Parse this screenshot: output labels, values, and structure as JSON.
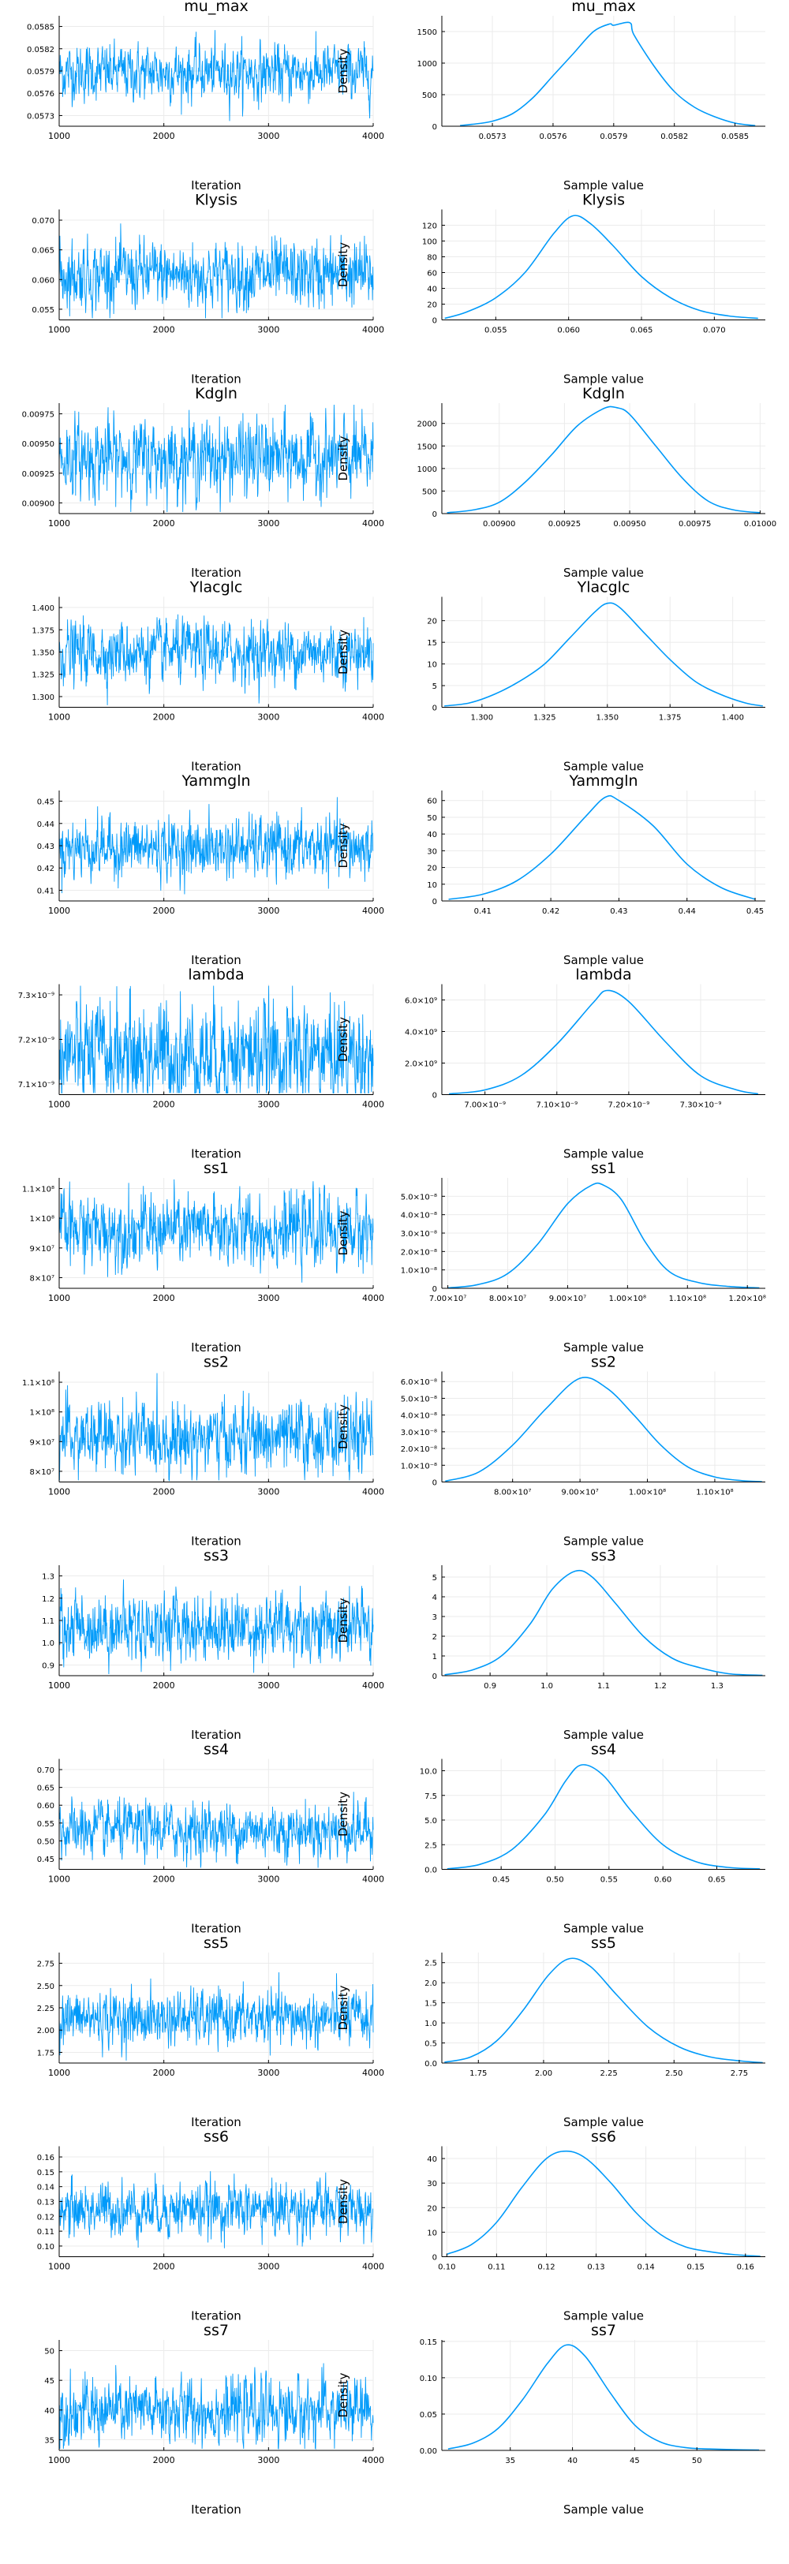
{
  "colors": {
    "trace": "#009AFA",
    "density": "#009AFA",
    "grid": "#EBEBEB",
    "axis": "#000000"
  },
  "common": {
    "trace_xlabel": "Iteration",
    "density_xlabel": "Sample value",
    "density_ylabel": "Density"
  },
  "chart_data": [
    {
      "name": "mu_max",
      "trace": {
        "type": "line",
        "title": "mu_max",
        "xlabel": "Iteration",
        "xlim": [
          1000,
          4000
        ],
        "xticks": [
          "1000",
          "2000",
          "3000",
          "4000"
        ],
        "yticks": [
          "0.0573",
          "0.0576",
          "0.0579",
          "0.0582",
          "0.0585"
        ],
        "mean": 0.05788,
        "spread": 0.000185
      },
      "density": {
        "type": "line",
        "title": "mu_max",
        "xlabel": "Sample value",
        "ylabel": "Density",
        "x": [
          0.05714,
          0.0572,
          0.0573,
          0.0574,
          0.0575,
          0.0576,
          0.0577,
          0.0578,
          0.05788,
          0.0579,
          0.05798,
          0.058,
          0.0581,
          0.0582,
          0.0583,
          0.0584,
          0.0585,
          0.0586
        ],
        "y": [
          10,
          30,
          80,
          200,
          450,
          800,
          1150,
          1500,
          1620,
          1600,
          1640,
          1450,
          950,
          550,
          300,
          150,
          50,
          10
        ],
        "xlim": [
          0.05705,
          0.05865
        ],
        "ylim": [
          0,
          1750
        ],
        "xticks": [
          "0.0573",
          "0.0576",
          "0.0579",
          "0.0582",
          "0.0585"
        ],
        "yticks": [
          "0",
          "500",
          "1000",
          "1500"
        ]
      }
    },
    {
      "name": "Klysis",
      "trace": {
        "type": "line",
        "title": "Klysis",
        "xlabel": "Iteration",
        "xlim": [
          1000,
          4000
        ],
        "xticks": [
          "1000",
          "2000",
          "3000",
          "4000"
        ],
        "yticks": [
          "0.055",
          "0.060",
          "0.065",
          "0.070"
        ],
        "mean": 0.0608,
        "spread": 0.0028
      },
      "density": {
        "type": "line",
        "title": "Klysis",
        "xlabel": "Sample value",
        "ylabel": "Density",
        "x": [
          0.0515,
          0.053,
          0.055,
          0.057,
          0.059,
          0.0603,
          0.0615,
          0.063,
          0.065,
          0.067,
          0.069,
          0.071,
          0.073
        ],
        "y": [
          2,
          10,
          28,
          60,
          110,
          132,
          122,
          95,
          55,
          28,
          12,
          5,
          2
        ],
        "xlim": [
          0.0513,
          0.0735
        ],
        "ylim": [
          0,
          140
        ],
        "xticks": [
          "0.055",
          "0.060",
          "0.065",
          "0.070"
        ],
        "yticks": [
          "0",
          "20",
          "40",
          "60",
          "80",
          "100",
          "120"
        ]
      }
    },
    {
      "name": "Kdgln",
      "trace": {
        "type": "line",
        "title": "Kdgln",
        "xlabel": "Iteration",
        "xlim": [
          1000,
          4000
        ],
        "xticks": [
          "1000",
          "2000",
          "3000",
          "4000"
        ],
        "yticks": [
          "0.00900",
          "0.00925",
          "0.00950",
          "0.00975"
        ],
        "mean": 0.00938,
        "spread": 0.00016
      },
      "density": {
        "type": "line",
        "title": "Kdgln",
        "xlabel": "Sample value",
        "ylabel": "Density",
        "x": [
          0.0088,
          0.0089,
          0.009,
          0.0091,
          0.0092,
          0.0093,
          0.0094,
          0.00945,
          0.0095,
          0.0096,
          0.0097,
          0.0098,
          0.0099,
          0.01
        ],
        "y": [
          20,
          80,
          250,
          700,
          1300,
          1950,
          2330,
          2350,
          2200,
          1500,
          800,
          280,
          80,
          20
        ],
        "xlim": [
          0.00878,
          0.01002
        ],
        "ylim": [
          0,
          2450
        ],
        "xticks": [
          "0.00900",
          "0.00925",
          "0.00950",
          "0.00975",
          "0.01000"
        ],
        "yticks": [
          "0",
          "500",
          "1000",
          "1500",
          "2000"
        ]
      }
    },
    {
      "name": "Ylacglc",
      "trace": {
        "type": "line",
        "title": "Ylacglc",
        "xlabel": "Iteration",
        "xlim": [
          1000,
          4000
        ],
        "xticks": [
          "1000",
          "2000",
          "3000",
          "4000"
        ],
        "yticks": [
          "1.300",
          "1.325",
          "1.350",
          "1.375",
          "1.400"
        ],
        "mean": 1.35,
        "spread": 0.017
      },
      "density": {
        "type": "line",
        "title": "Ylacglc",
        "xlabel": "Sample value",
        "ylabel": "Density",
        "x": [
          1.285,
          1.295,
          1.305,
          1.315,
          1.325,
          1.335,
          1.345,
          1.35,
          1.355,
          1.365,
          1.375,
          1.385,
          1.395,
          1.405,
          1.412
        ],
        "y": [
          0.3,
          1,
          3,
          6,
          10,
          16,
          22,
          24,
          23,
          17,
          11,
          6,
          3,
          1,
          0.3
        ],
        "xlim": [
          1.284,
          1.413
        ],
        "ylim": [
          0,
          25.5
        ],
        "xticks": [
          "1.300",
          "1.325",
          "1.350",
          "1.375",
          "1.400"
        ],
        "yticks": [
          "0",
          "5",
          "10",
          "15",
          "20"
        ]
      }
    },
    {
      "name": "Yammgln",
      "trace": {
        "type": "line",
        "title": "Yammgln",
        "xlabel": "Iteration",
        "xlim": [
          1000,
          4000
        ],
        "xticks": [
          "1000",
          "2000",
          "3000",
          "4000"
        ],
        "yticks": [
          "0.41",
          "0.42",
          "0.43",
          "0.44",
          "0.45"
        ],
        "mean": 0.429,
        "spread": 0.0066
      },
      "density": {
        "type": "line",
        "title": "Yammgln",
        "xlabel": "Sample value",
        "ylabel": "Density",
        "x": [
          0.405,
          0.41,
          0.415,
          0.42,
          0.425,
          0.428,
          0.43,
          0.435,
          0.44,
          0.445,
          0.45
        ],
        "y": [
          1,
          4,
          12,
          28,
          50,
          62,
          60,
          45,
          22,
          8,
          1
        ],
        "xlim": [
          0.404,
          0.4515
        ],
        "ylim": [
          0,
          66
        ],
        "xticks": [
          "0.41",
          "0.42",
          "0.43",
          "0.44",
          "0.45"
        ],
        "yticks": [
          "0",
          "10",
          "20",
          "30",
          "40",
          "50",
          "60"
        ]
      }
    },
    {
      "name": "lambda",
      "trace": {
        "type": "line",
        "title": "lambda",
        "xlabel": "Iteration",
        "xlim": [
          1000,
          4000
        ],
        "xticks": [
          "1000",
          "2000",
          "3000",
          "4000"
        ],
        "yticks": [
          "7.1×10⁻⁹",
          "7.2×10⁻⁹",
          "7.3×10⁻⁹"
        ],
        "mean": 7.165e-09,
        "spread": 6e-11
      },
      "density": {
        "type": "line",
        "title": "lambda",
        "xlabel": "Sample value",
        "ylabel": "Density",
        "x": [
          6.95e-09,
          7e-09,
          7.05e-09,
          7.1e-09,
          7.15e-09,
          7.17e-09,
          7.2e-09,
          7.25e-09,
          7.3e-09,
          7.35e-09,
          7.38e-09
        ],
        "y": [
          50000000.0,
          300000000.0,
          1200000000.0,
          3200000000.0,
          5800000000.0,
          6600000000.0,
          5900000000.0,
          3400000000.0,
          1200000000.0,
          300000000.0,
          50000000.0
        ],
        "xlim": [
          6.94e-09,
          7.39e-09
        ],
        "ylim": [
          0,
          7000000000.0
        ],
        "xticks": [
          "7.00×10⁻⁹",
          "7.10×10⁻⁹",
          "7.20×10⁻⁹",
          "7.30×10⁻⁹"
        ],
        "yticks": [
          "0",
          "2.0×10⁹",
          "4.0×10⁹",
          "6.0×10⁹"
        ]
      }
    },
    {
      "name": "ss1",
      "trace": {
        "type": "line",
        "title": "ss1",
        "xlabel": "Iteration",
        "xlim": [
          1000,
          4000
        ],
        "xticks": [
          "1000",
          "2000",
          "3000",
          "4000"
        ],
        "yticks": [
          "8×10⁷",
          "9×10⁷",
          "1×10⁸",
          "1.1×10⁸"
        ],
        "mean": 96000000.0,
        "spread": 6000000.0
      },
      "density": {
        "type": "line",
        "title": "ss1",
        "xlabel": "Sample value",
        "ylabel": "Density",
        "x": [
          70000000.0,
          75000000.0,
          80000000.0,
          85000000.0,
          90000000.0,
          94000000.0,
          96000000.0,
          99000000.0,
          103000000.0,
          107000000.0,
          112000000.0,
          117000000.0,
          122000000.0
        ],
        "y": [
          2e-10,
          2e-09,
          8e-09,
          2.4e-08,
          4.6e-08,
          5.6e-08,
          5.6e-08,
          4.8e-08,
          2.5e-08,
          9e-09,
          3e-09,
          1e-09,
          2e-10
        ],
        "xlim": [
          69000000.0,
          123000000.0
        ],
        "ylim": [
          0,
          6e-08
        ],
        "xticks": [
          "7.00×10⁷",
          "8.00×10⁷",
          "9.00×10⁷",
          "1.00×10⁸",
          "1.10×10⁸",
          "1.20×10⁸"
        ],
        "yticks": [
          "0",
          "1.0×10⁻⁸",
          "2.0×10⁻⁸",
          "3.0×10⁻⁸",
          "4.0×10⁻⁸",
          "5.0×10⁻⁸"
        ]
      }
    },
    {
      "name": "ss2",
      "trace": {
        "type": "line",
        "title": "ss2",
        "xlabel": "Iteration",
        "xlim": [
          1000,
          4000
        ],
        "xticks": [
          "1000",
          "2000",
          "3000",
          "4000"
        ],
        "yticks": [
          "8×10⁷",
          "9×10⁷",
          "1×10⁸",
          "1.1×10⁸"
        ],
        "mean": 91000000.0,
        "spread": 6000000.0
      },
      "density": {
        "type": "line",
        "title": "ss2",
        "xlabel": "Sample value",
        "ylabel": "Density",
        "x": [
          70000000.0,
          75000000.0,
          80000000.0,
          85000000.0,
          90000000.0,
          94000000.0,
          98000000.0,
          102000000.0,
          106000000.0,
          110000000.0,
          114000000.0,
          117000000.0
        ],
        "y": [
          5e-10,
          6e-09,
          2.2e-08,
          4.4e-08,
          6.2e-08,
          5.6e-08,
          4e-08,
          2.2e-08,
          9e-09,
          3e-09,
          8e-10,
          2e-10
        ],
        "xlim": [
          69500000.0,
          117500000.0
        ],
        "ylim": [
          0,
          6.6e-08
        ],
        "xticks": [
          "8.00×10⁷",
          "9.00×10⁷",
          "1.00×10⁸",
          "1.10×10⁸"
        ],
        "yticks": [
          "0",
          "1.0×10⁻⁸",
          "2.0×10⁻⁸",
          "3.0×10⁻⁸",
          "4.0×10⁻⁸",
          "5.0×10⁻⁸",
          "6.0×10⁻⁸"
        ]
      }
    },
    {
      "name": "ss3",
      "trace": {
        "type": "line",
        "title": "ss3",
        "xlabel": "Iteration",
        "xlim": [
          1000,
          4000
        ],
        "xticks": [
          "1000",
          "2000",
          "3000",
          "4000"
        ],
        "yticks": [
          "0.9",
          "1.0",
          "1.1",
          "1.2",
          "1.3"
        ],
        "mean": 1.07,
        "spread": 0.075
      },
      "density": {
        "type": "line",
        "title": "ss3",
        "xlabel": "Sample value",
        "ylabel": "Density",
        "x": [
          0.82,
          0.87,
          0.92,
          0.97,
          1.01,
          1.05,
          1.08,
          1.12,
          1.17,
          1.22,
          1.27,
          1.32,
          1.38
        ],
        "y": [
          0.05,
          0.3,
          1.0,
          2.6,
          4.4,
          5.3,
          5.0,
          3.7,
          2.0,
          0.9,
          0.4,
          0.1,
          0.02
        ],
        "xlim": [
          0.815,
          1.385
        ],
        "ylim": [
          0,
          5.6
        ],
        "xticks": [
          "0.9",
          "1.0",
          "1.1",
          "1.2",
          "1.3"
        ],
        "yticks": [
          "0",
          "1",
          "2",
          "3",
          "4",
          "5"
        ]
      }
    },
    {
      "name": "ss4",
      "trace": {
        "type": "line",
        "title": "ss4",
        "xlabel": "Iteration",
        "xlim": [
          1000,
          4000
        ],
        "xticks": [
          "1000",
          "2000",
          "3000",
          "4000"
        ],
        "yticks": [
          "0.45",
          "0.50",
          "0.55",
          "0.60",
          "0.65",
          "0.70"
        ],
        "mean": 0.53,
        "spread": 0.038
      },
      "density": {
        "type": "line",
        "title": "ss4",
        "xlabel": "Sample value",
        "ylabel": "Density",
        "x": [
          0.4,
          0.43,
          0.46,
          0.49,
          0.51,
          0.525,
          0.545,
          0.57,
          0.6,
          0.63,
          0.66,
          0.69
        ],
        "y": [
          0.05,
          0.5,
          2.0,
          5.5,
          9.0,
          10.6,
          9.5,
          6.0,
          2.5,
          0.8,
          0.2,
          0.05
        ],
        "xlim": [
          0.395,
          0.695
        ],
        "ylim": [
          0,
          11.2
        ],
        "xticks": [
          "0.45",
          "0.50",
          "0.55",
          "0.60",
          "0.65"
        ],
        "yticks": [
          "0.0",
          "2.5",
          "5.0",
          "7.5",
          "10.0"
        ]
      }
    },
    {
      "name": "ss5",
      "trace": {
        "type": "line",
        "title": "ss5",
        "xlabel": "Iteration",
        "xlim": [
          1000,
          4000
        ],
        "xticks": [
          "1000",
          "2000",
          "3000",
          "4000"
        ],
        "yticks": [
          "1.75",
          "2.00",
          "2.25",
          "2.50",
          "2.75"
        ],
        "mean": 2.13,
        "spread": 0.15
      },
      "density": {
        "type": "line",
        "title": "ss5",
        "xlabel": "Sample value",
        "ylabel": "Density",
        "x": [
          1.62,
          1.72,
          1.82,
          1.92,
          2.02,
          2.1,
          2.18,
          2.28,
          2.4,
          2.52,
          2.64,
          2.76,
          2.84
        ],
        "y": [
          0.02,
          0.15,
          0.55,
          1.3,
          2.2,
          2.6,
          2.4,
          1.7,
          0.9,
          0.4,
          0.15,
          0.05,
          0.01
        ],
        "xlim": [
          1.61,
          2.85
        ],
        "ylim": [
          0,
          2.75
        ],
        "xticks": [
          "1.75",
          "2.00",
          "2.25",
          "2.50",
          "2.75"
        ],
        "yticks": [
          "0.0",
          "0.5",
          "1.0",
          "1.5",
          "2.0",
          "2.5"
        ]
      }
    },
    {
      "name": "ss6",
      "trace": {
        "type": "line",
        "title": "ss6",
        "xlabel": "Iteration",
        "xlim": [
          1000,
          4000
        ],
        "xticks": [
          "1000",
          "2000",
          "3000",
          "4000"
        ],
        "yticks": [
          "0.10",
          "0.11",
          "0.12",
          "0.13",
          "0.14",
          "0.15",
          "0.16"
        ],
        "mean": 0.125,
        "spread": 0.009
      },
      "density": {
        "type": "line",
        "title": "ss6",
        "xlabel": "Sample value",
        "ylabel": "Density",
        "x": [
          0.1,
          0.105,
          0.11,
          0.115,
          0.12,
          0.124,
          0.128,
          0.133,
          0.138,
          0.143,
          0.148,
          0.153,
          0.158,
          0.163
        ],
        "y": [
          1,
          5,
          14,
          28,
          40,
          43,
          40,
          30,
          18,
          9,
          4,
          2,
          0.8,
          0.2
        ],
        "xlim": [
          0.099,
          0.164
        ],
        "ylim": [
          0,
          45
        ],
        "xticks": [
          "0.10",
          "0.11",
          "0.12",
          "0.13",
          "0.14",
          "0.15",
          "0.16"
        ],
        "yticks": [
          "0",
          "10",
          "20",
          "30",
          "40"
        ]
      }
    },
    {
      "name": "ss7",
      "trace": {
        "type": "line",
        "title": "ss7",
        "xlabel": "Iteration",
        "xlim": [
          1000,
          4000
        ],
        "xticks": [
          "1000",
          "2000",
          "3000",
          "4000"
        ],
        "yticks": [
          "35",
          "40",
          "45",
          "50"
        ],
        "mean": 39.8,
        "spread": 2.7
      },
      "density": {
        "type": "line",
        "title": "ss7",
        "xlabel": "Sample value",
        "ylabel": "Density",
        "x": [
          30,
          32,
          34,
          36,
          38,
          39.5,
          41,
          43,
          45,
          47,
          49,
          51,
          53,
          55
        ],
        "y": [
          0.002,
          0.01,
          0.03,
          0.07,
          0.12,
          0.145,
          0.13,
          0.08,
          0.035,
          0.012,
          0.004,
          0.002,
          0.001,
          0.0005
        ],
        "xlim": [
          29.5,
          55.5
        ],
        "ylim": [
          0,
          0.152
        ],
        "xticks": [
          "35",
          "40",
          "45",
          "50"
        ],
        "yticks": [
          "0.00",
          "0.05",
          "0.10",
          "0.15"
        ]
      }
    }
  ]
}
